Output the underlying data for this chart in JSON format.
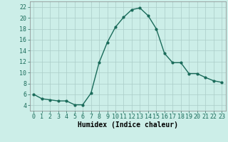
{
  "x": [
    0,
    1,
    2,
    3,
    4,
    5,
    6,
    7,
    8,
    9,
    10,
    11,
    12,
    13,
    14,
    15,
    16,
    17,
    18,
    19,
    20,
    21,
    22,
    23
  ],
  "y": [
    6.0,
    5.2,
    5.0,
    4.8,
    4.8,
    4.1,
    4.1,
    6.2,
    11.8,
    15.5,
    18.3,
    20.1,
    21.5,
    21.8,
    20.4,
    18.0,
    13.5,
    11.8,
    11.8,
    9.8,
    9.8,
    9.1,
    8.5,
    8.2
  ],
  "line_color": "#1a6b5a",
  "bg_color": "#cceee8",
  "grid_color": "#aaccc8",
  "xlabel": "Humidex (Indice chaleur)",
  "ylim": [
    3,
    23
  ],
  "xlim": [
    -0.5,
    23.5
  ],
  "xticks": [
    0,
    1,
    2,
    3,
    4,
    5,
    6,
    7,
    8,
    9,
    10,
    11,
    12,
    13,
    14,
    15,
    16,
    17,
    18,
    19,
    20,
    21,
    22,
    23
  ],
  "yticks": [
    4,
    6,
    8,
    10,
    12,
    14,
    16,
    18,
    20,
    22
  ],
  "marker_size": 2.0,
  "line_width": 1.0,
  "font_size": 6.0,
  "xlabel_fontsize": 7.0
}
